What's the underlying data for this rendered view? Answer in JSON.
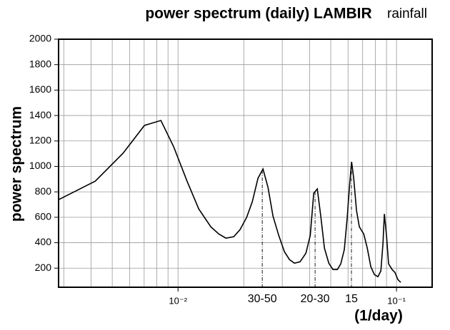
{
  "chart_data": {
    "type": "line",
    "title": "power spectrum (daily) LAMBIR",
    "subtitle": "rainfall",
    "x_label": "(1/day)",
    "y_label": "power spectrum",
    "log_x": true,
    "grid": true,
    "color": "#000000",
    "xlim": [
      0.00284,
      0.1456
    ],
    "ylim": [
      50,
      2000
    ],
    "xticks": [
      {
        "value": 0.01,
        "label": "10⁻²"
      },
      {
        "value": 0.1,
        "label": "10⁻¹"
      }
    ],
    "xminor": [
      0.003,
      0.004,
      0.005,
      0.006,
      0.007,
      0.008,
      0.009,
      0.01,
      0.02,
      0.03,
      0.04,
      0.05,
      0.06,
      0.07,
      0.08,
      0.09,
      0.1
    ],
    "yticks": [
      200,
      400,
      600,
      800,
      1000,
      1200,
      1400,
      1600,
      1800,
      2000
    ],
    "x": [
      0.00284,
      0.00418,
      0.0056,
      0.00702,
      0.00835,
      0.00956,
      0.011,
      0.01244,
      0.01413,
      0.01536,
      0.01656,
      0.01799,
      0.01923,
      0.0206,
      0.02188,
      0.02323,
      0.02449,
      0.02582,
      0.02721,
      0.0289,
      0.0307,
      0.0324,
      0.0341,
      0.0362,
      0.0385,
      0.0403,
      0.0418,
      0.0434,
      0.0451,
      0.0468,
      0.049,
      0.0512,
      0.0536,
      0.0556,
      0.0577,
      0.0595,
      0.0609,
      0.0623,
      0.0637,
      0.0656,
      0.0676,
      0.0708,
      0.0735,
      0.0763,
      0.0792,
      0.0822,
      0.0848,
      0.0867,
      0.088,
      0.09,
      0.092,
      0.0955,
      0.0984,
      0.1015,
      0.1046
    ],
    "values": [
      738,
      884,
      1103,
      1322,
      1361,
      1153,
      884,
      666,
      525,
      469,
      436,
      447,
      503,
      598,
      722,
      907,
      980,
      834,
      609,
      458,
      329,
      267,
      239,
      250,
      318,
      458,
      789,
      823,
      598,
      357,
      239,
      189,
      189,
      234,
      346,
      598,
      839,
      1036,
      907,
      654,
      525,
      469,
      357,
      211,
      150,
      133,
      178,
      391,
      626,
      458,
      234,
      189,
      166,
      110,
      88
    ],
    "annotations": [
      {
        "text": "30-50",
        "x": 0.0243
      },
      {
        "text": "20-30",
        "x": 0.0424
      },
      {
        "text": "15",
        "x": 0.0622
      }
    ]
  }
}
